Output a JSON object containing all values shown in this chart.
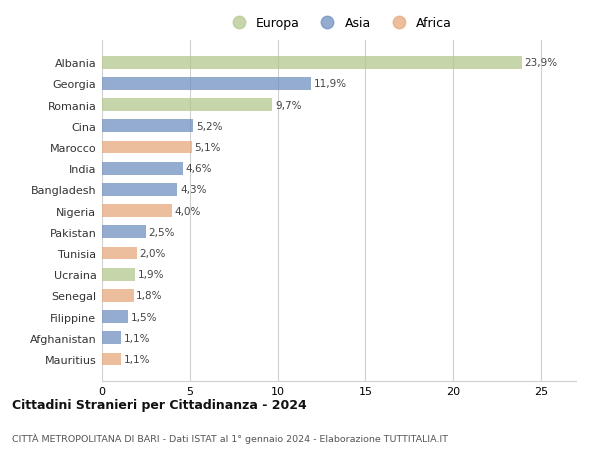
{
  "countries": [
    "Albania",
    "Georgia",
    "Romania",
    "Cina",
    "Marocco",
    "India",
    "Bangladesh",
    "Nigeria",
    "Pakistan",
    "Tunisia",
    "Ucraina",
    "Senegal",
    "Filippine",
    "Afghanistan",
    "Mauritius"
  ],
  "values": [
    23.9,
    11.9,
    9.7,
    5.2,
    5.1,
    4.6,
    4.3,
    4.0,
    2.5,
    2.0,
    1.9,
    1.8,
    1.5,
    1.1,
    1.1
  ],
  "continents": [
    "Europa",
    "Asia",
    "Europa",
    "Asia",
    "Africa",
    "Asia",
    "Asia",
    "Africa",
    "Asia",
    "Africa",
    "Europa",
    "Africa",
    "Asia",
    "Asia",
    "Africa"
  ],
  "continent_colors": {
    "Europa": "#b5c98e",
    "Asia": "#7090c0",
    "Africa": "#e8a87c"
  },
  "labels": [
    "23,9%",
    "11,9%",
    "9,7%",
    "5,2%",
    "5,1%",
    "4,6%",
    "4,3%",
    "4,0%",
    "2,5%",
    "2,0%",
    "1,9%",
    "1,8%",
    "1,5%",
    "1,1%",
    "1,1%"
  ],
  "title": "Cittadini Stranieri per Cittadinanza - 2024",
  "subtitle": "CITTÀ METROPOLITANA DI BARI - Dati ISTAT al 1° gennaio 2024 - Elaborazione TUTTITALIA.IT",
  "xlim": [
    0,
    27
  ],
  "xticks": [
    0,
    5,
    10,
    15,
    20,
    25
  ],
  "background_color": "#ffffff",
  "grid_color": "#d0d0d0",
  "bar_alpha": 0.75,
  "bar_height": 0.6
}
